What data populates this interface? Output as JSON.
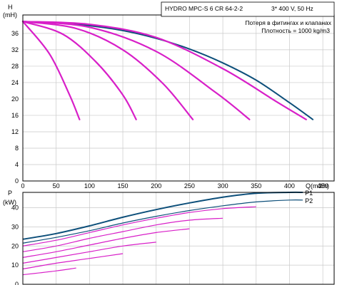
{
  "colors": {
    "pump_curve": "#0d4f7a",
    "system_curve": "#d81fc8"
  },
  "chart_data": [
    {
      "type": "line",
      "ylabel_top": "H",
      "ylabel_unit": "(mH)",
      "xlabel": "Q(m3/h)",
      "x_ticks": [
        "0",
        "50",
        "100",
        "150",
        "200",
        "250",
        "300",
        "350",
        "400",
        "450"
      ],
      "y_ticks": [
        "0",
        "4",
        "8",
        "12",
        "16",
        "20",
        "24",
        "28",
        "32",
        "36"
      ],
      "xlim": [
        0,
        467
      ],
      "ylim": [
        0,
        40.5
      ],
      "grid": true,
      "info": {
        "model_line": "HYDRO MPC-S 6 CR 64-2-2",
        "supply_line": "3* 400 V, 50 Hz",
        "loss_line": "Потеря в фитингах и клапанах",
        "density_line": "Плотность = 1000 kg/m3"
      },
      "series": [
        {
          "color": "#0d4f7a",
          "x": [
            0,
            50,
            100,
            150,
            200,
            250,
            300,
            350,
            400,
            435
          ],
          "y": [
            38.9,
            38.6,
            37.9,
            36.7,
            34.8,
            32.2,
            28.8,
            24.6,
            19.1,
            15.0
          ]
        },
        {
          "color": "#d81fc8",
          "x": [
            0,
            40,
            70,
            85
          ],
          "y": [
            38.9,
            31.0,
            21.0,
            15.0
          ]
        },
        {
          "color": "#d81fc8",
          "x": [
            0,
            60,
            110,
            150,
            170
          ],
          "y": [
            38.9,
            35.8,
            29.0,
            21.0,
            15.0
          ]
        },
        {
          "color": "#d81fc8",
          "x": [
            0,
            80,
            150,
            210,
            255
          ],
          "y": [
            38.9,
            37.2,
            32.0,
            23.8,
            15.0
          ]
        },
        {
          "color": "#d81fc8",
          "x": [
            0,
            100,
            200,
            290,
            340
          ],
          "y": [
            38.9,
            37.5,
            31.6,
            21.5,
            15.0
          ]
        },
        {
          "color": "#d81fc8",
          "x": [
            0,
            100,
            200,
            300,
            380,
            425
          ],
          "y": [
            38.9,
            38.2,
            35.0,
            27.4,
            19.4,
            15.0
          ]
        }
      ]
    },
    {
      "type": "line",
      "ylabel_top": "P",
      "ylabel_unit": "(kW)",
      "y_ticks": [
        "0",
        "10",
        "20",
        "30",
        "40"
      ],
      "ylim": [
        0,
        48
      ],
      "grid": true,
      "series": [
        {
          "name": "P1",
          "color": "#0d4f7a",
          "x": [
            0,
            50,
            100,
            150,
            200,
            250,
            300,
            350,
            400,
            420
          ],
          "y": [
            23.5,
            26.5,
            30.5,
            35,
            39,
            42.5,
            45.5,
            47.5,
            48,
            48
          ]
        },
        {
          "name": "P2",
          "color": "#0d4f7a",
          "x": [
            0,
            50,
            100,
            150,
            200,
            250,
            300,
            350,
            400,
            420
          ],
          "y": [
            21.5,
            24.5,
            28,
            32,
            35.5,
            38.5,
            41,
            43,
            44,
            44
          ]
        },
        {
          "color": "#d81fc8",
          "x": [
            0,
            50,
            100,
            150,
            200,
            250,
            300,
            350
          ],
          "y": [
            20,
            23,
            27,
            31,
            34.5,
            37.5,
            39.5,
            40.5
          ]
        },
        {
          "color": "#d81fc8",
          "x": [
            0,
            50,
            100,
            150,
            200,
            250,
            300
          ],
          "y": [
            17,
            20,
            24,
            27.5,
            31,
            33.5,
            34.5
          ]
        },
        {
          "color": "#d81fc8",
          "x": [
            0,
            50,
            100,
            150,
            200,
            250
          ],
          "y": [
            14,
            17,
            20.5,
            24,
            27,
            29
          ]
        },
        {
          "color": "#d81fc8",
          "x": [
            0,
            50,
            100,
            150,
            200
          ],
          "y": [
            11,
            14,
            17,
            20,
            22
          ]
        },
        {
          "color": "#d81fc8",
          "x": [
            0,
            50,
            100,
            150
          ],
          "y": [
            8,
            11,
            13.5,
            16
          ]
        },
        {
          "color": "#d81fc8",
          "x": [
            0,
            50,
            80
          ],
          "y": [
            5,
            7,
            8.5
          ]
        }
      ]
    }
  ]
}
